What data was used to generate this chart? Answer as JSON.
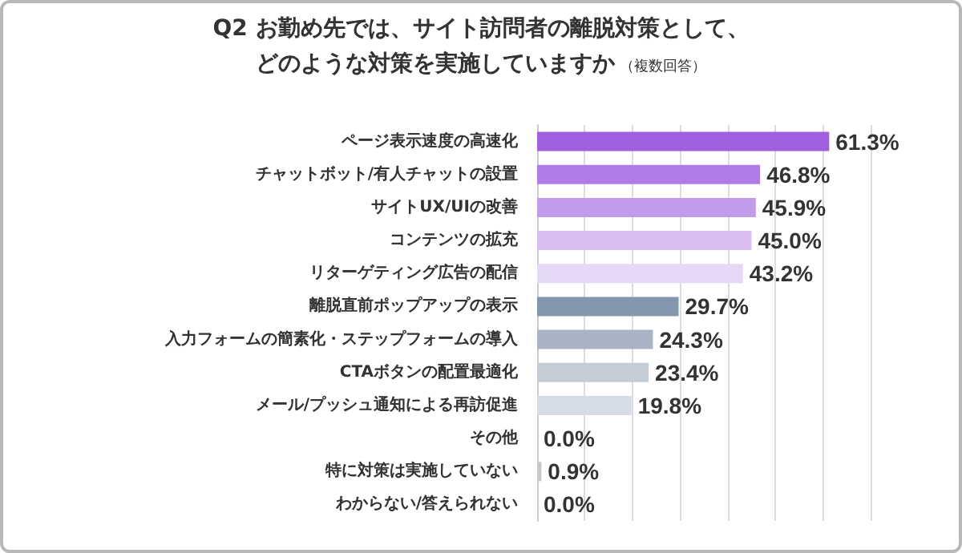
{
  "chart_data": {
    "type": "bar",
    "orientation": "horizontal",
    "title": "Q2 お勤め先では、サイト訪問者の離脱対策として、どのような対策を実施していますか",
    "subtitle": "（複数回答）",
    "categories": [
      "ページ表示速度の高速化",
      "チャットボット/有人チャットの設置",
      "サイトUX/UIの改善",
      "コンテンツの拡充",
      "リターゲティング広告の配信",
      "離脱直前ポップアップの表示",
      "入力フォームの簡素化・ステップフォームの導入",
      "CTAボタンの配置最適化",
      "メール/プッシュ通知による再訪促進",
      "その他",
      "特に対策は実施していない",
      "わからない/答えられない"
    ],
    "values": [
      61.3,
      46.8,
      45.9,
      45.0,
      43.2,
      29.7,
      24.3,
      23.4,
      19.8,
      0.0,
      0.9,
      0.0
    ],
    "value_labels": [
      "61.3%",
      "46.8%",
      "45.9%",
      "45.0%",
      "43.2%",
      "29.7%",
      "24.3%",
      "23.4%",
      "19.8%",
      "0.0%",
      "0.9%",
      "0.0%"
    ],
    "colors": [
      "#a05ee0",
      "#b07ce6",
      "#c39beb",
      "#d8bdf3",
      "#e6d8f7",
      "#8496ae",
      "#a8b3c6",
      "#c4ccd8",
      "#d6dce6",
      "#c8c8c8",
      "#c8c8c8",
      "#c8c8c8"
    ],
    "xlim": [
      0,
      70
    ],
    "xticks": [
      {
        "value": 0,
        "label": null
      },
      {
        "value": 10,
        "label": null
      },
      {
        "value": 20,
        "label": null
      },
      {
        "value": 30,
        "label": null
      },
      {
        "value": 40,
        "label": null
      },
      {
        "value": 50,
        "label": null
      },
      {
        "value": 60,
        "label": null
      },
      {
        "value": 70,
        "label": null
      }
    ],
    "grid": "x",
    "tick_labels": "y"
  }
}
